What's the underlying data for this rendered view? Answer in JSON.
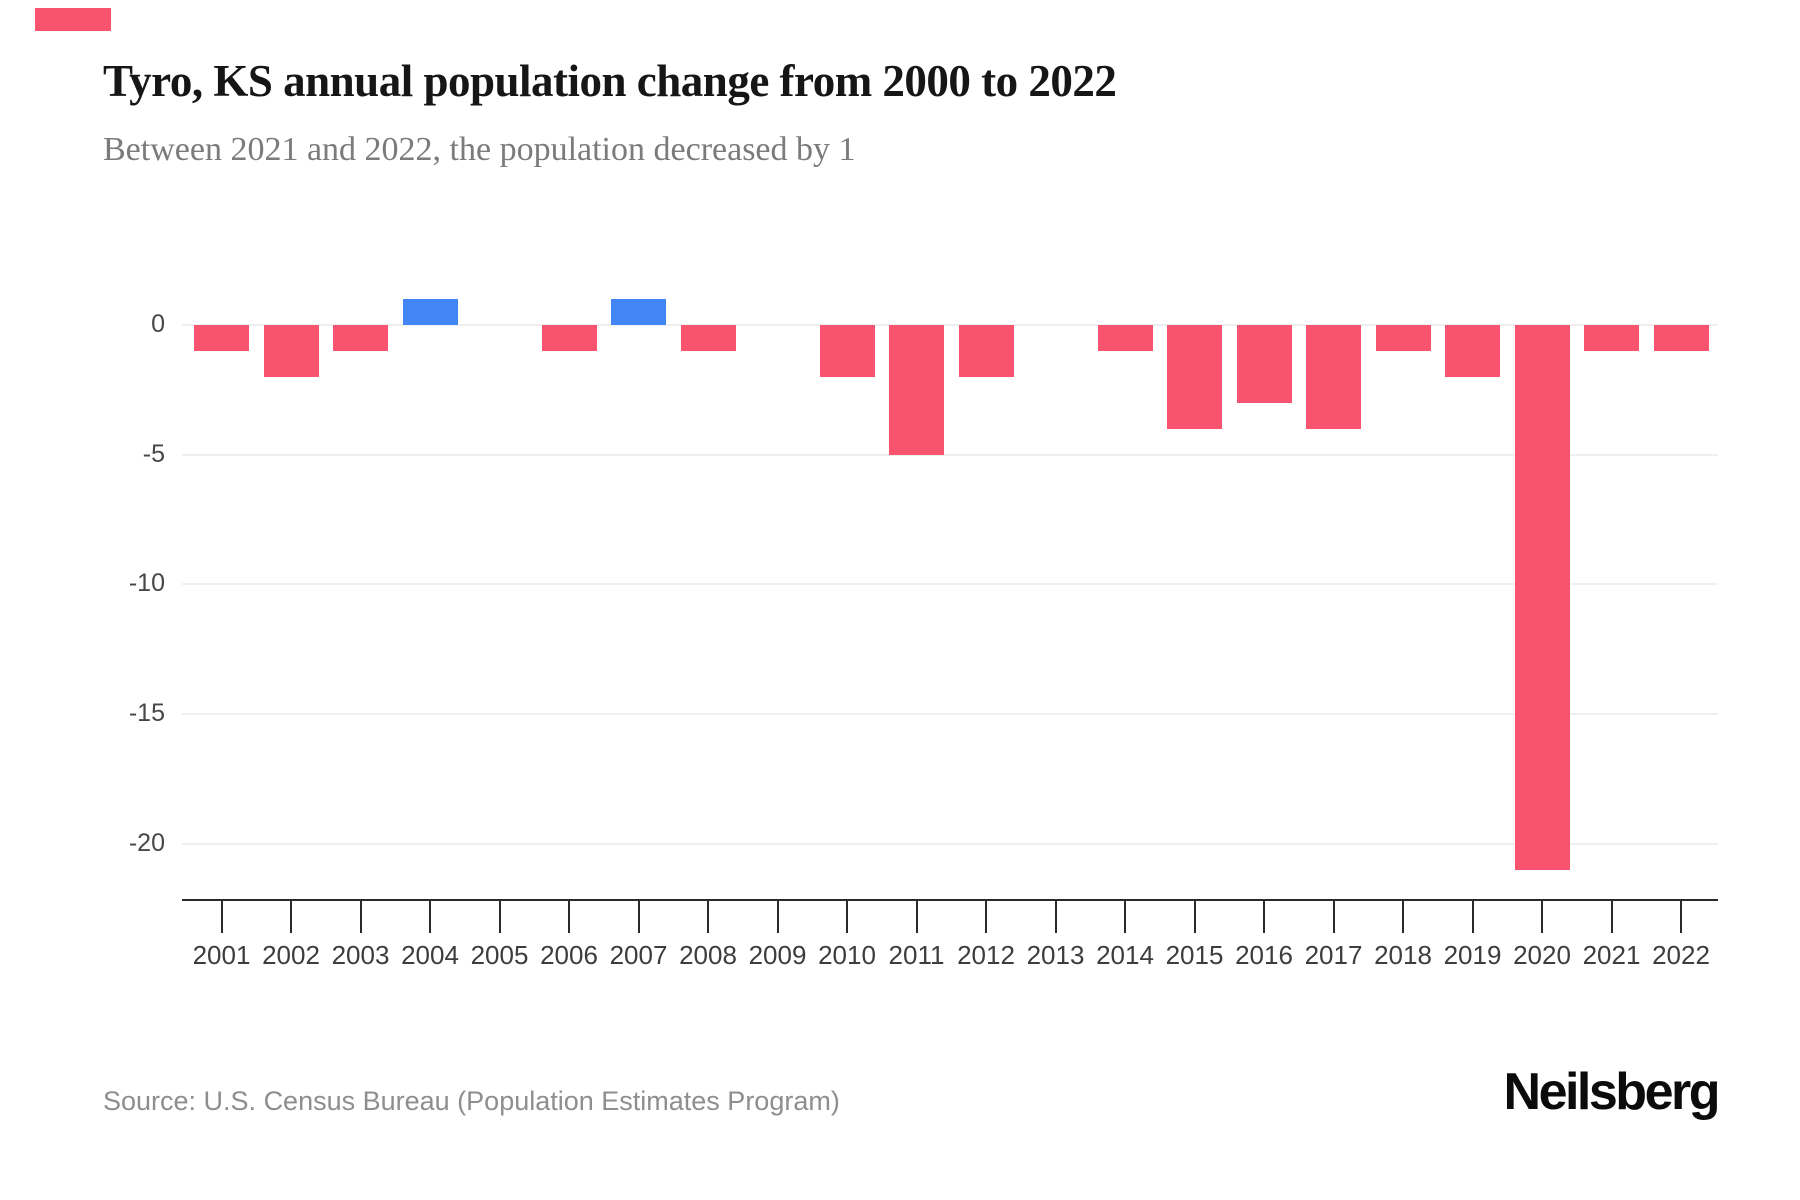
{
  "brand": {
    "accent_color": "#F85470",
    "logo_text": "Neilsberg"
  },
  "header": {
    "title": "Tyro, KS annual population change from 2000 to 2022",
    "subtitle": "Between 2021 and 2022, the population decreased by 1"
  },
  "chart_data": {
    "type": "bar",
    "title": "Tyro, KS annual population change from 2000 to 2022",
    "subtitle": "Between 2021 and 2022, the population decreased by 1",
    "categories": [
      "2001",
      "2002",
      "2003",
      "2004",
      "2005",
      "2006",
      "2007",
      "2008",
      "2009",
      "2010",
      "2011",
      "2012",
      "2013",
      "2014",
      "2015",
      "2016",
      "2017",
      "2018",
      "2019",
      "2020",
      "2021",
      "2022"
    ],
    "values": [
      -1,
      -2,
      -1,
      1,
      0,
      -1,
      1,
      -1,
      0,
      -2,
      -5,
      -2,
      0,
      -1,
      -4,
      -3,
      -4,
      -1,
      -2,
      -21,
      -1,
      -1
    ],
    "y_ticks": [
      0,
      -5,
      -10,
      -15,
      -20
    ],
    "y_tick_labels": [
      "0",
      "-5",
      "-10",
      "-15",
      "-20"
    ],
    "ylim": [
      -22,
      2
    ],
    "xlabel": "",
    "ylabel": "",
    "grid": "horizontal",
    "legend": "none",
    "negative_color": "#F85470",
    "positive_color": "#4285F4"
  },
  "footer": {
    "source": "Source: U.S. Census Bureau (Population Estimates Program)"
  }
}
